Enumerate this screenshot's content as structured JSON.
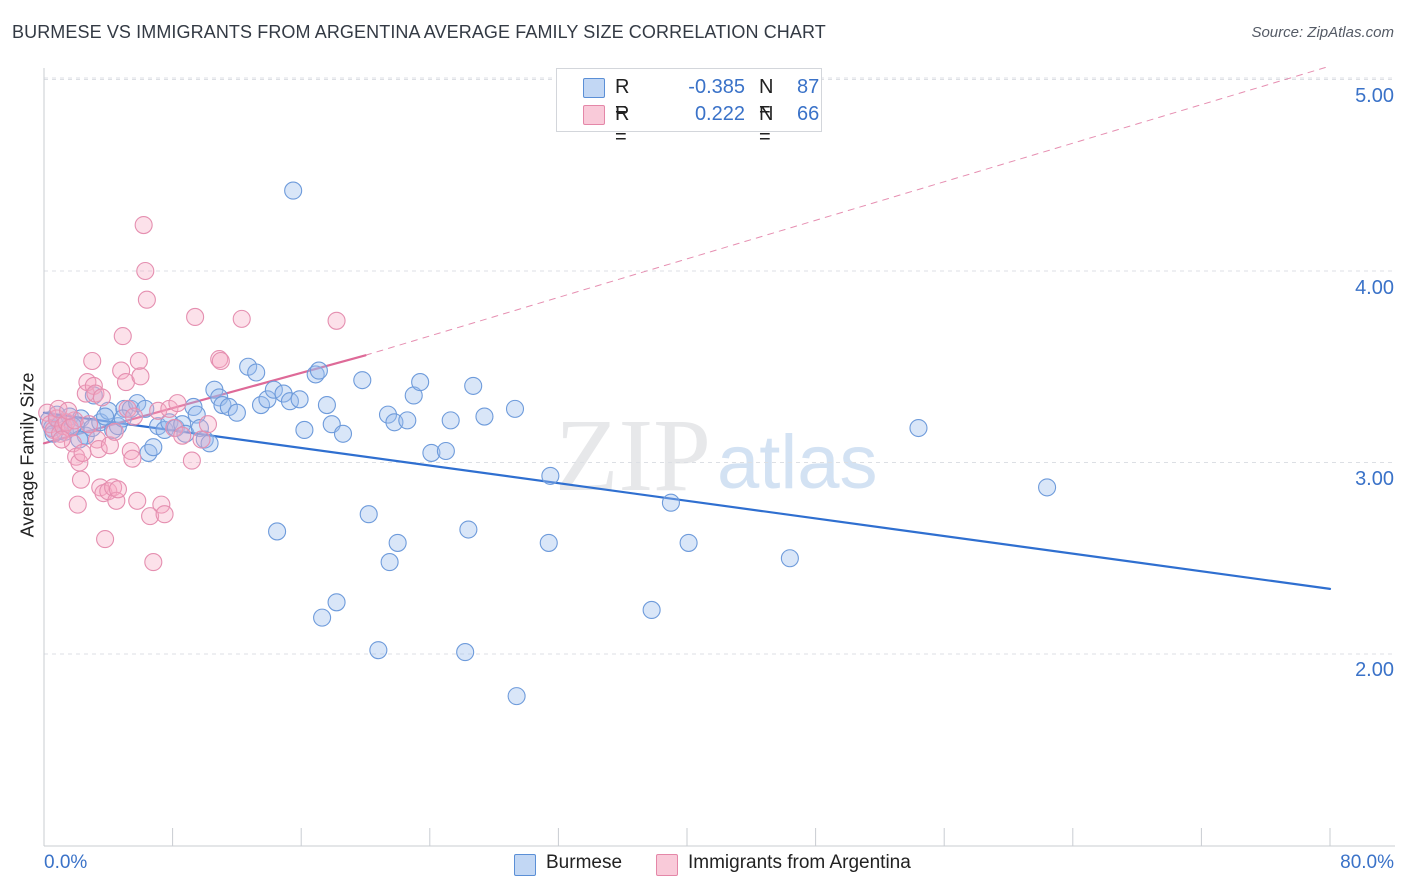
{
  "title": "BURMESE VS IMMIGRANTS FROM ARGENTINA AVERAGE FAMILY SIZE CORRELATION CHART",
  "source": "Source: ZipAtlas.com",
  "colors": {
    "burmese": "#3a72c8",
    "argentina": "#e06090",
    "accent_text": "#3a72c8"
  },
  "legend": {
    "burmese": {
      "r_label": "R =",
      "r_value": "-0.385",
      "n_label": "N =",
      "n_value": "87"
    },
    "argentina": {
      "r_label": "R =",
      "r_value": "0.222",
      "n_label": "N =",
      "n_value": "66"
    }
  },
  "bottom_legend": {
    "burmese": "Burmese",
    "argentina": "Immigrants from Argentina"
  },
  "watermark": {
    "zip": "ZIP",
    "atlas": "atlas"
  },
  "chart_data": {
    "type": "scatter",
    "title": "BURMESE VS IMMIGRANTS FROM ARGENTINA AVERAGE FAMILY SIZE CORRELATION CHART",
    "xlabel": "",
    "ylabel": "Average Family Size",
    "xlim": [
      0,
      80
    ],
    "ylim": [
      1.0,
      5.15
    ],
    "x_tick_labels": [
      "0.0%",
      "80.0%"
    ],
    "y_ticks": [
      2.0,
      3.0,
      4.0,
      5.0
    ],
    "y_tick_labels": [
      "2.00",
      "3.00",
      "4.00",
      "5.00"
    ],
    "grid": true,
    "legend_position": "top-center",
    "series": [
      {
        "name": "Burmese",
        "color": "#3a72c8",
        "points": [
          [
            0.3,
            3.22
          ],
          [
            0.5,
            3.18
          ],
          [
            0.8,
            3.25
          ],
          [
            1.0,
            3.2
          ],
          [
            1.3,
            3.16
          ],
          [
            1.6,
            3.24
          ],
          [
            2.0,
            3.19
          ],
          [
            2.3,
            3.23
          ],
          [
            2.6,
            3.14
          ],
          [
            3.0,
            3.18
          ],
          [
            3.1,
            3.35
          ],
          [
            3.5,
            3.21
          ],
          [
            4.0,
            3.27
          ],
          [
            4.3,
            3.17
          ],
          [
            4.6,
            3.19
          ],
          [
            5.0,
            3.28
          ],
          [
            5.4,
            3.28
          ],
          [
            5.8,
            3.31
          ],
          [
            6.3,
            3.28
          ],
          [
            6.5,
            3.05
          ],
          [
            6.8,
            3.08
          ],
          [
            7.1,
            3.19
          ],
          [
            7.5,
            3.17
          ],
          [
            7.8,
            3.21
          ],
          [
            8.2,
            3.18
          ],
          [
            8.6,
            3.2
          ],
          [
            8.8,
            3.15
          ],
          [
            9.3,
            3.29
          ],
          [
            9.5,
            3.25
          ],
          [
            9.7,
            3.18
          ],
          [
            10.0,
            3.12
          ],
          [
            10.3,
            3.1
          ],
          [
            10.6,
            3.38
          ],
          [
            10.9,
            3.34
          ],
          [
            11.1,
            3.3
          ],
          [
            11.5,
            3.29
          ],
          [
            12.0,
            3.26
          ],
          [
            12.7,
            3.5
          ],
          [
            13.2,
            3.47
          ],
          [
            13.5,
            3.3
          ],
          [
            13.9,
            3.33
          ],
          [
            14.3,
            3.38
          ],
          [
            14.9,
            3.36
          ],
          [
            15.3,
            3.32
          ],
          [
            15.5,
            4.42
          ],
          [
            15.9,
            3.33
          ],
          [
            16.2,
            3.17
          ],
          [
            16.9,
            3.46
          ],
          [
            17.1,
            3.48
          ],
          [
            17.6,
            3.3
          ],
          [
            17.9,
            3.2
          ],
          [
            18.6,
            3.15
          ],
          [
            19.8,
            3.43
          ],
          [
            21.4,
            3.25
          ],
          [
            21.8,
            3.21
          ],
          [
            22.6,
            3.22
          ],
          [
            23.0,
            3.35
          ],
          [
            23.4,
            3.42
          ],
          [
            24.1,
            3.05
          ],
          [
            25.0,
            3.06
          ],
          [
            25.3,
            3.22
          ],
          [
            26.7,
            3.4
          ],
          [
            27.4,
            3.24
          ],
          [
            29.3,
            3.28
          ],
          [
            31.5,
            2.93
          ],
          [
            14.5,
            2.64
          ],
          [
            18.2,
            2.27
          ],
          [
            17.3,
            2.19
          ],
          [
            20.2,
            2.73
          ],
          [
            20.8,
            2.02
          ],
          [
            21.5,
            2.48
          ],
          [
            22.0,
            2.58
          ],
          [
            26.2,
            2.01
          ],
          [
            26.4,
            2.65
          ],
          [
            29.4,
            1.78
          ],
          [
            31.4,
            2.58
          ],
          [
            37.8,
            2.23
          ],
          [
            39.0,
            2.79
          ],
          [
            40.1,
            2.58
          ],
          [
            46.4,
            2.5
          ],
          [
            54.4,
            3.18
          ],
          [
            62.4,
            2.87
          ],
          [
            0.6,
            3.15
          ],
          [
            1.8,
            3.19
          ],
          [
            2.2,
            3.12
          ],
          [
            3.8,
            3.24
          ],
          [
            4.9,
            3.23
          ]
        ]
      },
      {
        "name": "Immigrants from Argentina",
        "color": "#e06090",
        "points": [
          [
            0.2,
            3.26
          ],
          [
            0.4,
            3.2
          ],
          [
            0.6,
            3.17
          ],
          [
            0.8,
            3.23
          ],
          [
            1.0,
            3.15
          ],
          [
            1.2,
            3.19
          ],
          [
            1.4,
            3.21
          ],
          [
            1.6,
            3.18
          ],
          [
            1.8,
            3.1
          ],
          [
            1.9,
            3.22
          ],
          [
            2.0,
            3.03
          ],
          [
            2.2,
            3.0
          ],
          [
            2.3,
            2.91
          ],
          [
            2.4,
            3.05
          ],
          [
            2.6,
            3.36
          ],
          [
            2.7,
            3.42
          ],
          [
            3.0,
            3.53
          ],
          [
            3.1,
            3.4
          ],
          [
            3.2,
            3.36
          ],
          [
            3.3,
            3.12
          ],
          [
            3.4,
            3.07
          ],
          [
            3.5,
            2.87
          ],
          [
            3.7,
            2.84
          ],
          [
            3.8,
            2.6
          ],
          [
            4.0,
            2.85
          ],
          [
            4.1,
            3.09
          ],
          [
            4.3,
            2.87
          ],
          [
            4.5,
            2.8
          ],
          [
            4.6,
            2.86
          ],
          [
            4.8,
            3.48
          ],
          [
            4.9,
            3.66
          ],
          [
            5.1,
            3.42
          ],
          [
            5.2,
            3.28
          ],
          [
            5.4,
            3.06
          ],
          [
            5.5,
            3.02
          ],
          [
            5.6,
            3.24
          ],
          [
            5.8,
            2.8
          ],
          [
            5.9,
            3.53
          ],
          [
            6.0,
            3.45
          ],
          [
            6.2,
            4.24
          ],
          [
            6.3,
            4.0
          ],
          [
            6.4,
            3.85
          ],
          [
            6.6,
            2.72
          ],
          [
            6.8,
            2.48
          ],
          [
            7.1,
            3.27
          ],
          [
            7.3,
            2.78
          ],
          [
            7.5,
            2.73
          ],
          [
            7.8,
            3.28
          ],
          [
            8.1,
            3.18
          ],
          [
            8.3,
            3.31
          ],
          [
            8.6,
            3.14
          ],
          [
            9.2,
            3.01
          ],
          [
            9.4,
            3.76
          ],
          [
            9.8,
            3.12
          ],
          [
            10.2,
            3.2
          ],
          [
            10.9,
            3.54
          ],
          [
            11.0,
            3.53
          ],
          [
            12.3,
            3.75
          ],
          [
            18.2,
            3.74
          ],
          [
            0.9,
            3.28
          ],
          [
            1.1,
            3.12
          ],
          [
            1.5,
            3.27
          ],
          [
            2.1,
            2.78
          ],
          [
            2.8,
            3.2
          ],
          [
            3.6,
            3.34
          ],
          [
            4.4,
            3.16
          ]
        ]
      }
    ],
    "trend_lines": [
      {
        "series": "Burmese",
        "x": [
          0,
          80
        ],
        "y": [
          3.26,
          2.34
        ],
        "style": "solid"
      },
      {
        "series": "Immigrants from Argentina",
        "x": [
          0,
          20
        ],
        "y": [
          3.1,
          3.56
        ],
        "style": "solid"
      },
      {
        "series": "Immigrants from Argentina",
        "x": [
          20,
          80
        ],
        "y": [
          3.56,
          5.07
        ],
        "style": "dashed"
      }
    ]
  }
}
